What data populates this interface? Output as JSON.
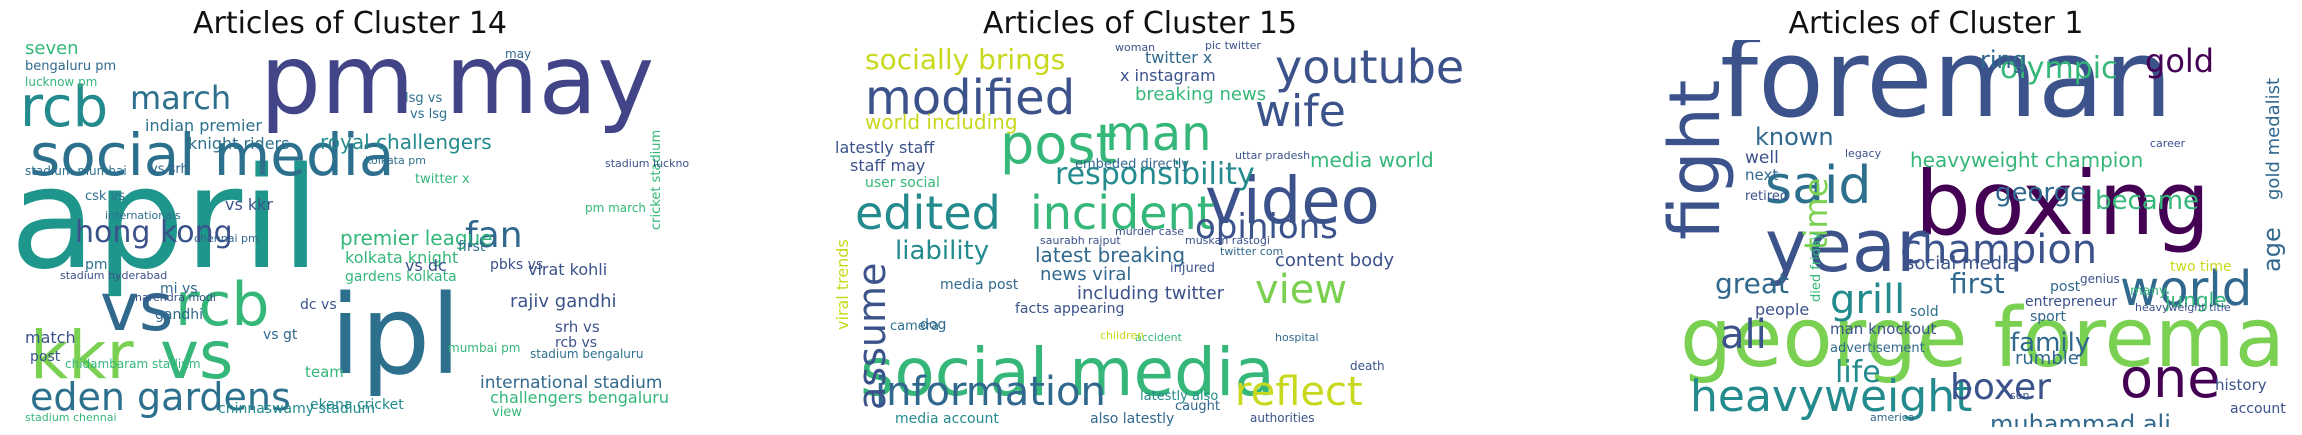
{
  "palette": {
    "purple": "#440154",
    "indigo": "#3b528b",
    "blue": "#31688e",
    "teal": "#21918c",
    "green": "#35b779",
    "lime": "#7ad151",
    "yellow": "#c8d81d"
  },
  "clusters": [
    {
      "title": "Articles of Cluster 14",
      "words": [
        "pm",
        "may",
        "april",
        "social media",
        "rcb",
        "march",
        "vs",
        "kkr",
        "vs",
        "rcb",
        "ipl",
        "eden gardens",
        "hong kong",
        "fan",
        "royal challengers",
        "indian premier",
        "knight riders",
        "premier league",
        "kolkata knight",
        "chidambaram stadium",
        "international stadium",
        "challengers bengaluru",
        "chinnaswamy stadium",
        "rajiv gandhi",
        "virat kohli",
        "stadium bengaluru",
        "cricket stadium",
        "stadium lucknow",
        "mumbai pm",
        "pm march",
        "chennai pm",
        "ekana cricket",
        "lsg vs",
        "vs lsg",
        "vs srh",
        "vs kkr",
        "vs dc",
        "vs gt",
        "pbks vs",
        "srh vs",
        "dc vs",
        "rcb vs",
        "mi vs",
        "csk vs",
        "seven",
        "bengaluru pm",
        "lucknow pm",
        "stadium mumbai",
        "stadium hyderabad",
        "stadium chennai",
        "kolkata pm",
        "twitter x",
        "first",
        "team",
        "match",
        "post",
        "view",
        "gandhi",
        "gardens kolkata",
        "pm",
        "may",
        "narendra modi",
        "internationals"
      ]
    },
    {
      "title": "Articles of Cluster 15",
      "words": [
        "social media",
        "information",
        "video",
        "youtube",
        "modified",
        "wife",
        "man",
        "post",
        "edited",
        "incident",
        "opinions",
        "view",
        "assume",
        "reflect",
        "responsibility",
        "liability",
        "socially brings",
        "breaking news",
        "world including",
        "media world",
        "latest breaking",
        "including twitter",
        "content body",
        "news viral",
        "embeded directly",
        "x instagram",
        "twitter x",
        "viral trends",
        "latestly staff",
        "staff may",
        "user social",
        "media post",
        "facts appearing",
        "murder case",
        "uttar pradesh",
        "saurabh rajput",
        "muskan rastogi",
        "twitter com",
        "also latestly",
        "media account",
        "latestly also",
        "pic twitter",
        "authorities",
        "caught",
        "dog",
        "camera",
        "injured",
        "accident",
        "children",
        "hospital",
        "death",
        "woman"
      ]
    },
    {
      "title": "Articles of Cluster 1",
      "words": [
        "foreman",
        "boxing",
        "george foreman",
        "fight",
        "year",
        "said",
        "world",
        "heavyweight",
        "one",
        "champion",
        "boxer",
        "grill",
        "ali",
        "time",
        "olympic",
        "gold",
        "ring",
        "known",
        "george",
        "became",
        "heavyweight champion",
        "gold medalist",
        "muhammad ali",
        "social media",
        "family",
        "life",
        "first",
        "great",
        "people",
        "man knockout",
        "rumble",
        "jungle",
        "age",
        "sport",
        "history",
        "entrepreneur",
        "advertisement",
        "retired",
        "well",
        "next",
        "two time",
        "heavyweight title",
        "genius",
        "many",
        "post",
        "sold",
        "died friday",
        "account",
        "legacy",
        "america",
        "son",
        "career"
      ]
    }
  ]
}
